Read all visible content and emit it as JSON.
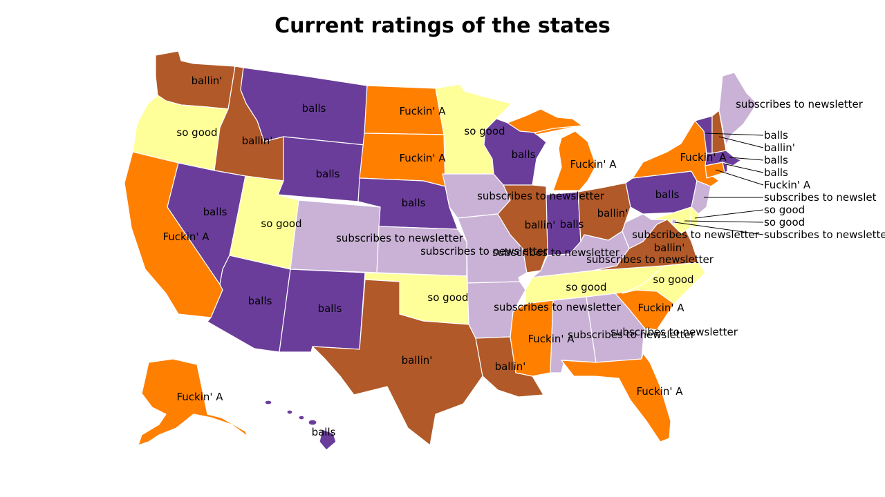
{
  "title": "Current ratings of the states",
  "colors": {
    "balls": "#6a3d9a",
    "ballin'": "#b15928",
    "Fuckin' A": "#ff7f00",
    "so good": "#ffff99",
    "subscribes to newsletter": "#cab2d6"
  },
  "states": [
    {
      "id": "WA",
      "rating": "ballin'"
    },
    {
      "id": "OR",
      "rating": "so good"
    },
    {
      "id": "CA",
      "rating": "Fuckin' A"
    },
    {
      "id": "ID",
      "rating": "ballin'"
    },
    {
      "id": "NV",
      "rating": "balls"
    },
    {
      "id": "MT",
      "rating": "balls"
    },
    {
      "id": "WY",
      "rating": "balls"
    },
    {
      "id": "UT",
      "rating": "so good"
    },
    {
      "id": "AZ",
      "rating": "balls"
    },
    {
      "id": "CO",
      "rating": "subscribes to newsletter"
    },
    {
      "id": "NM",
      "rating": "balls"
    },
    {
      "id": "ND",
      "rating": "Fuckin' A"
    },
    {
      "id": "SD",
      "rating": "Fuckin' A"
    },
    {
      "id": "NE",
      "rating": "balls"
    },
    {
      "id": "KS",
      "rating": "subscribes to newsletter"
    },
    {
      "id": "OK",
      "rating": "so good"
    },
    {
      "id": "TX",
      "rating": "ballin'"
    },
    {
      "id": "MN",
      "rating": "so good"
    },
    {
      "id": "IA",
      "rating": "subscribes to newsletter"
    },
    {
      "id": "MO",
      "rating": "subscribes to newsletter"
    },
    {
      "id": "AR",
      "rating": "subscribes to newsletter"
    },
    {
      "id": "LA",
      "rating": "ballin'"
    },
    {
      "id": "WI",
      "rating": "balls"
    },
    {
      "id": "IL",
      "rating": "ballin'"
    },
    {
      "id": "MI",
      "rating": "Fuckin' A"
    },
    {
      "id": "IN",
      "rating": "balls"
    },
    {
      "id": "OH",
      "rating": "ballin'"
    },
    {
      "id": "KY",
      "rating": "subscribes to newsletter"
    },
    {
      "id": "TN",
      "rating": "so good"
    },
    {
      "id": "MS",
      "rating": "Fuckin' A"
    },
    {
      "id": "AL",
      "rating": "subscribes to newsletter"
    },
    {
      "id": "GA",
      "rating": "subscribes to newsletter"
    },
    {
      "id": "FL",
      "rating": "Fuckin' A"
    },
    {
      "id": "SC",
      "rating": "Fuckin' A"
    },
    {
      "id": "NC",
      "rating": "so good"
    },
    {
      "id": "VA",
      "rating": "ballin'"
    },
    {
      "id": "WV",
      "rating": "subscribes to newsletter"
    },
    {
      "id": "PA",
      "rating": "balls"
    },
    {
      "id": "NY",
      "rating": "Fuckin' A"
    },
    {
      "id": "ME",
      "rating": "subscribes to newsletter"
    },
    {
      "id": "VT",
      "rating": "balls"
    },
    {
      "id": "NH",
      "rating": "ballin'"
    },
    {
      "id": "MA",
      "rating": "balls"
    },
    {
      "id": "RI",
      "rating": "balls"
    },
    {
      "id": "CT",
      "rating": "Fuckin' A"
    },
    {
      "id": "NJ",
      "rating": "subscribes to newsletter"
    },
    {
      "id": "DE",
      "rating": "so good"
    },
    {
      "id": "MD",
      "rating": "so good"
    },
    {
      "id": "DC",
      "rating": "subscribes to newsletter"
    },
    {
      "id": "AK",
      "rating": "Fuckin' A"
    },
    {
      "id": "HI",
      "rating": "balls"
    }
  ],
  "callout_labels": [
    "balls",
    "ballin'",
    "balls",
    "balls",
    "Fuckin' A",
    "subscribes to newslet",
    "so good",
    "so good",
    "subscribes to newsletterDC"
  ]
}
